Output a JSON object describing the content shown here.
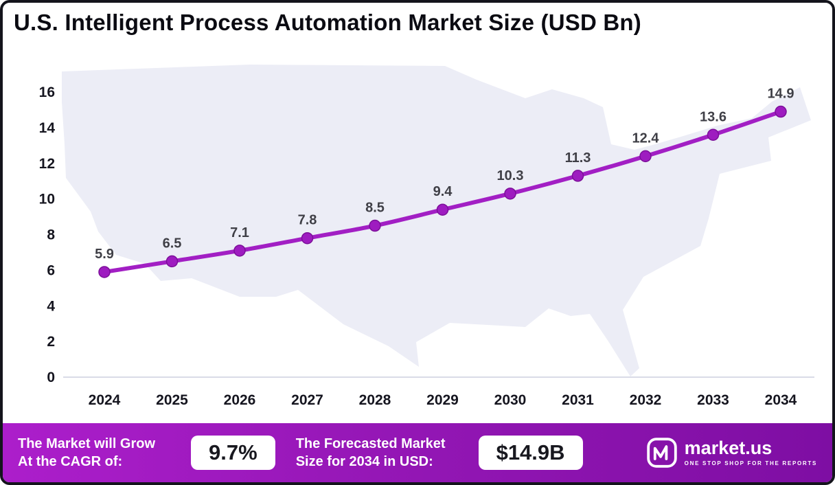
{
  "title": "U.S. Intelligent Process Automation Market Size (USD Bn)",
  "chart_data": {
    "type": "line",
    "title": "U.S. Intelligent Process Automation Market Size (USD Bn)",
    "x": [
      "2024",
      "2025",
      "2026",
      "2027",
      "2028",
      "2029",
      "2030",
      "2031",
      "2032",
      "2033",
      "2034"
    ],
    "series": [
      {
        "name": "U.S. Intelligent Process Automation Market Size (USD Bn)",
        "values": [
          5.9,
          6.5,
          7.1,
          7.8,
          8.5,
          9.4,
          10.3,
          11.3,
          12.4,
          13.6,
          14.9
        ]
      }
    ],
    "xlabel": "",
    "ylabel": "",
    "ylim": [
      0,
      16
    ],
    "yticks": [
      0,
      2,
      4,
      6,
      8,
      10,
      12,
      14,
      16
    ],
    "grid": false,
    "legend": "none",
    "data_labels": true,
    "background_motif": "us-map-silhouette",
    "colors": {
      "line": "#A21FC4",
      "marker": "#9E1CC0",
      "marker_edge": "#7C0F99",
      "axis_line": "#D9DBE7",
      "tick_text": "#15151F",
      "data_label": "#3F3F46",
      "map_fill": "#ECEDF6"
    }
  },
  "footer": {
    "cagr_label_line1": "The Market will Grow",
    "cagr_label_line2": "At the CAGR of:",
    "cagr_value": "9.7%",
    "forecast_label_line1": "The Forecasted Market",
    "forecast_label_line2": "Size for 2034 in USD:",
    "forecast_value": "$14.9B",
    "brand": "market.us",
    "tagline": "ONE STOP SHOP FOR THE REPORTS",
    "background_gradient": [
      "#AC1ECB",
      "#7E0EA3"
    ]
  },
  "frame": {
    "border_color": "#14141C",
    "background": "#FFFFFF"
  }
}
